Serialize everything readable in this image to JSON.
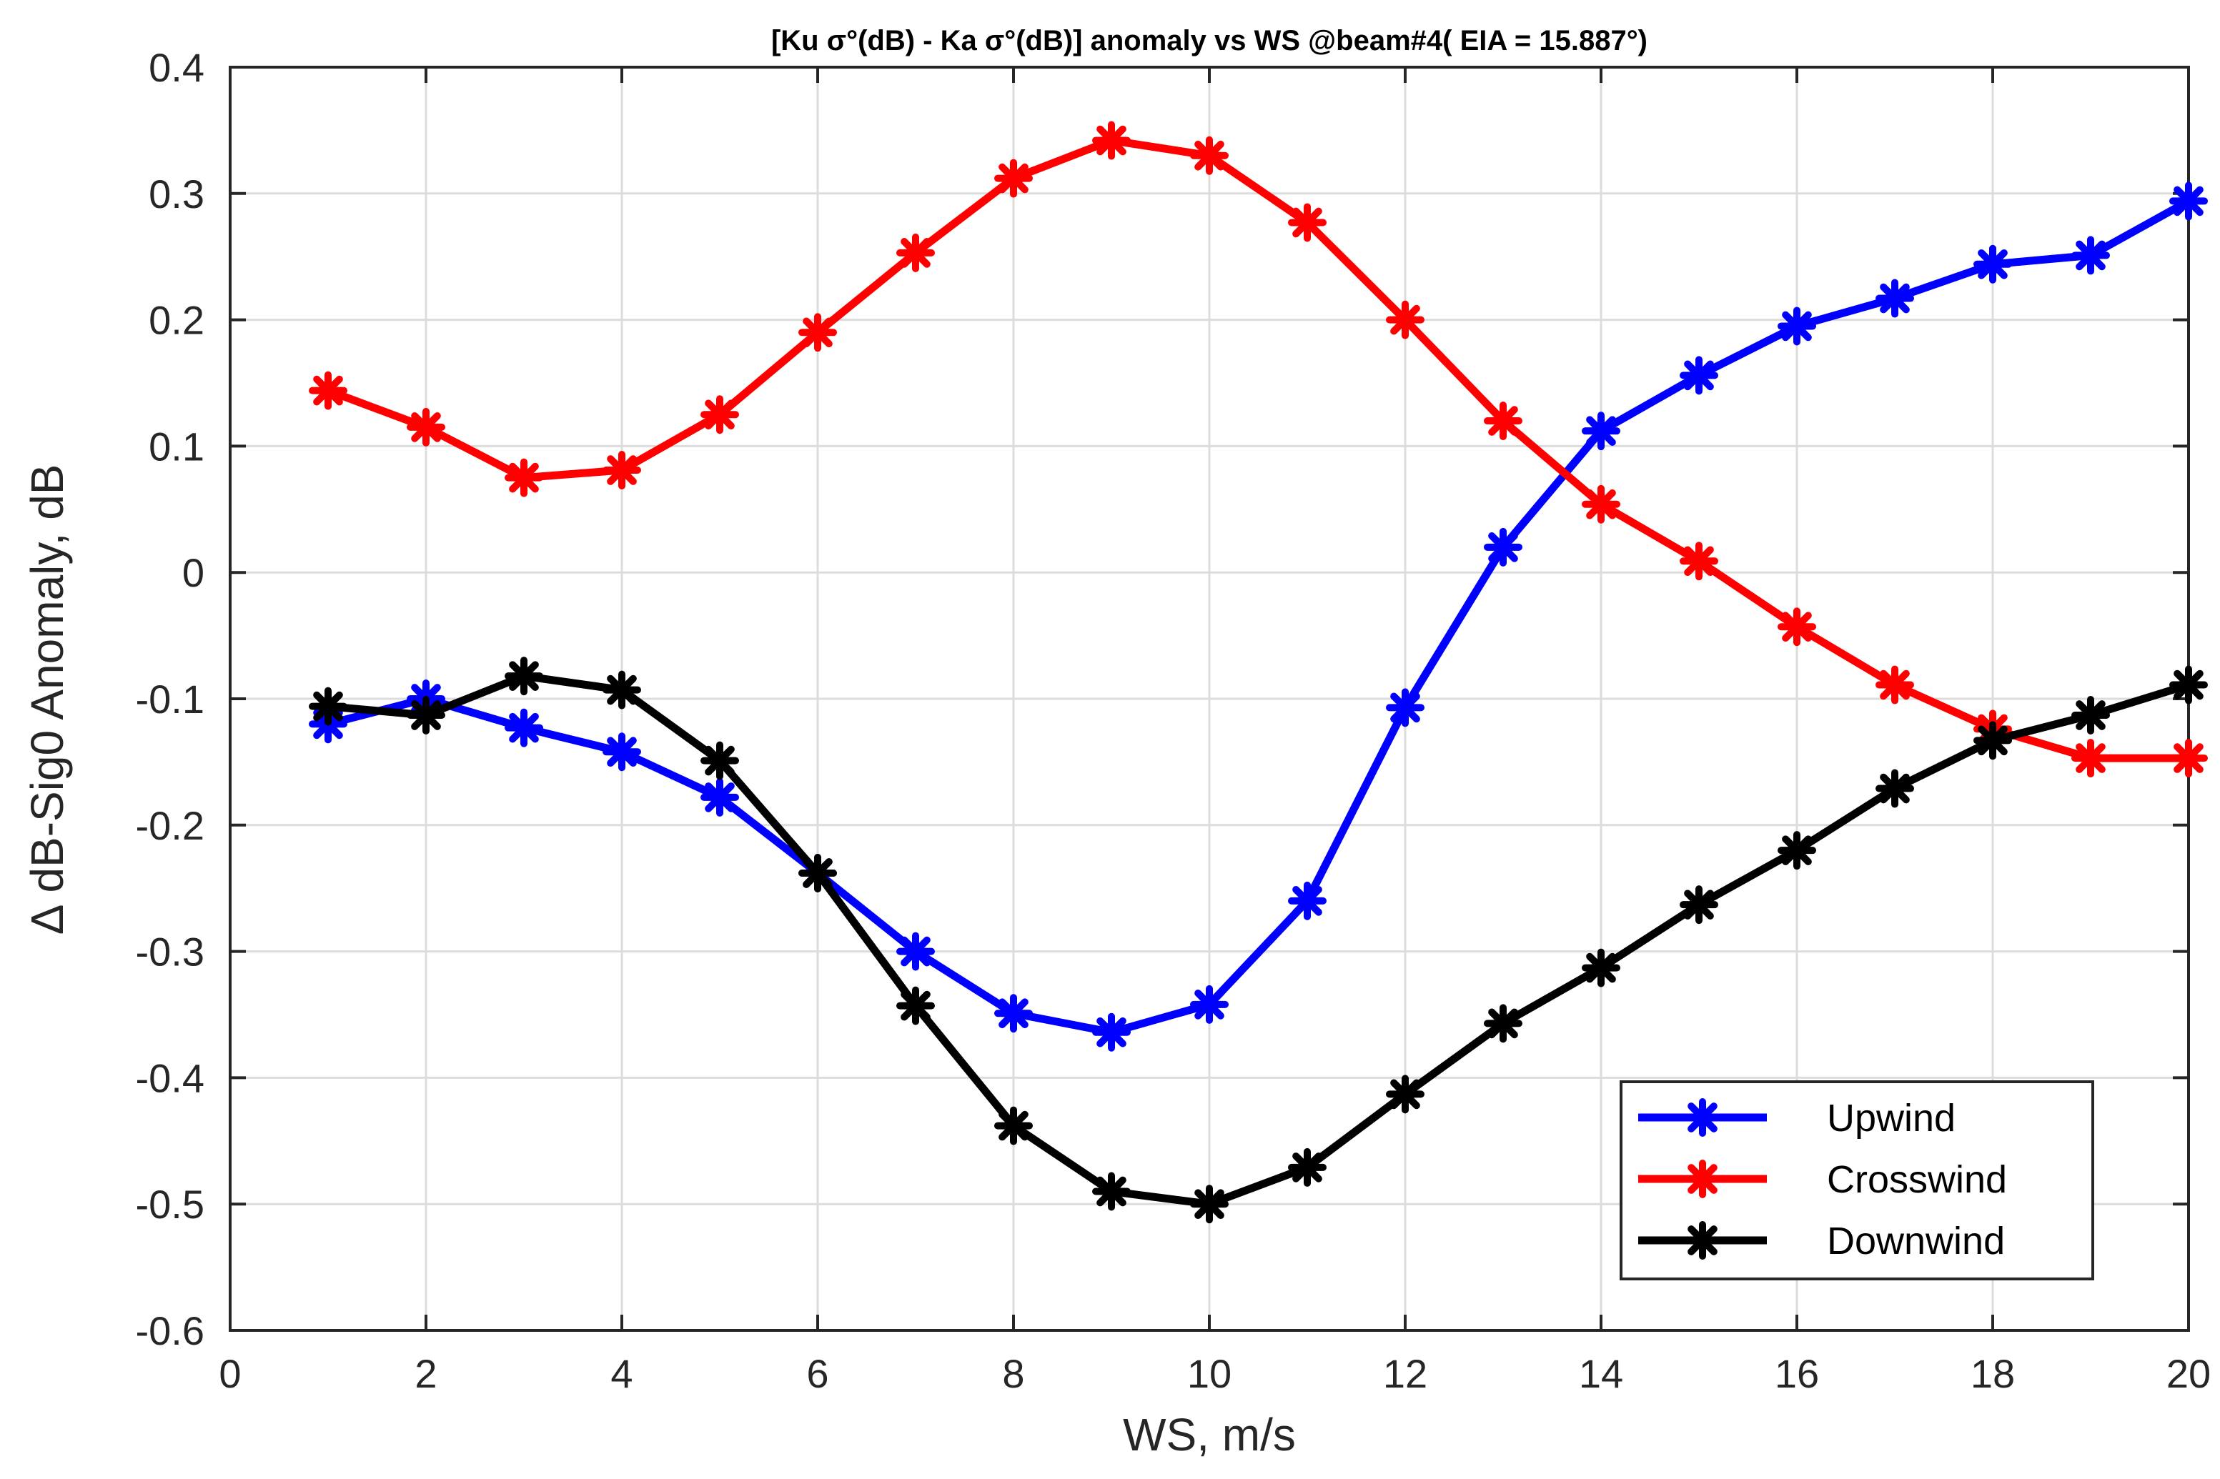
{
  "chart_data": {
    "type": "line",
    "title": "[Ku σ°(dB) - Ka σ°(dB)] anomaly vs WS @beam#4( EIA = 15.887°)",
    "xlabel": "WS, m/s",
    "ylabel": "∆ dB-Sig0 Anomaly, dB",
    "xlim": [
      0,
      20
    ],
    "ylim": [
      -0.6,
      0.4
    ],
    "xticks": [
      0,
      2,
      4,
      6,
      8,
      10,
      12,
      14,
      16,
      18,
      20
    ],
    "yticks": [
      -0.6,
      -0.5,
      -0.4,
      -0.3,
      -0.2,
      -0.1,
      0,
      0.1,
      0.2,
      0.3,
      0.4
    ],
    "xtick_labels": [
      "0",
      "2",
      "4",
      "6",
      "8",
      "10",
      "12",
      "14",
      "16",
      "18",
      "20"
    ],
    "ytick_labels": [
      "-0.6",
      "-0.5",
      "-0.4",
      "-0.3",
      "-0.2",
      "-0.1",
      "0",
      "0.1",
      "0.2",
      "0.3",
      "0.4"
    ],
    "grid": true,
    "legend_position": "bottom-right",
    "marker": "asterisk",
    "x": [
      1,
      2,
      3,
      4,
      5,
      6,
      7,
      8,
      9,
      10,
      11,
      12,
      13,
      14,
      15,
      16,
      17,
      18,
      19,
      20
    ],
    "series": [
      {
        "name": "Upwind",
        "color": "#0000ff",
        "values": [
          -0.12,
          -0.1,
          -0.123,
          -0.142,
          -0.178,
          -0.238,
          -0.3,
          -0.349,
          -0.364,
          -0.342,
          -0.26,
          -0.107,
          0.02,
          0.112,
          0.156,
          0.195,
          0.217,
          0.244,
          0.251,
          0.294
        ]
      },
      {
        "name": "Crosswind",
        "color": "#ff0000",
        "values": [
          0.144,
          0.115,
          0.075,
          0.081,
          0.125,
          0.19,
          0.253,
          0.312,
          0.342,
          0.33,
          0.277,
          0.2,
          0.12,
          0.054,
          0.009,
          -0.043,
          -0.089,
          -0.124,
          -0.147,
          -0.147
        ]
      },
      {
        "name": "Downwind",
        "color": "#000000",
        "values": [
          -0.106,
          -0.113,
          -0.082,
          -0.093,
          -0.149,
          -0.238,
          -0.343,
          -0.438,
          -0.49,
          -0.5,
          -0.471,
          -0.413,
          -0.357,
          -0.313,
          -0.263,
          -0.22,
          -0.171,
          -0.133,
          -0.113,
          -0.089
        ]
      }
    ]
  }
}
